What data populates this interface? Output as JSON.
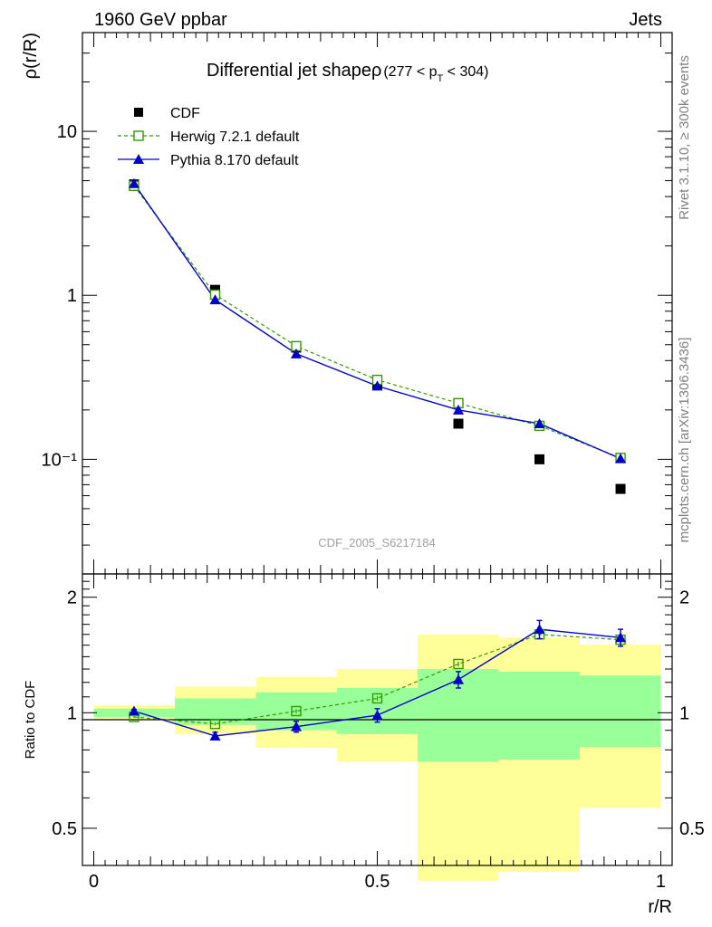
{
  "header": {
    "left": "1960 GeV ppbar",
    "right": "Jets"
  },
  "side_labels": {
    "rivet": "Rivet 3.1.10, ≥ 300k events",
    "mcplots": "mcplots.cern.ch [arXiv:1306.3436]"
  },
  "colors": {
    "cdf": "#000000",
    "herwig": "#339900",
    "pythia": "#0000cc",
    "band_outer": "#ffff99",
    "band_inner": "#99ff99"
  },
  "chart_data": [
    {
      "type": "scatter",
      "title": "Differential jet shapeρ",
      "title_cut": "(277 < p",
      "title_cut_sub": "T",
      "title_cut_end": " < 304)",
      "ylabel": "ρ(r/R)",
      "yscale": "log",
      "ylim": [
        0.02,
        40
      ],
      "xlim": [
        -0.02,
        1.02
      ],
      "y_tick_labels": [
        "10⁻¹",
        "1",
        "10"
      ],
      "watermark": "CDF_2005_S6217184",
      "legend_position": "top-left",
      "x": [
        0.071,
        0.214,
        0.357,
        0.5,
        0.643,
        0.786,
        0.929
      ],
      "series": [
        {
          "name": "CDF",
          "marker": "square-filled",
          "values": [
            4.75,
            1.08,
            0.48,
            0.285,
            0.165,
            0.1,
            0.066
          ]
        },
        {
          "name": "Herwig 7.2.1 default",
          "marker": "square-open",
          "line": "dashed",
          "values": [
            4.65,
            1.01,
            0.49,
            0.305,
            0.22,
            0.16,
            0.102
          ]
        },
        {
          "name": "Pythia 8.170 default",
          "marker": "triangle-filled",
          "line": "solid",
          "values": [
            4.8,
            0.94,
            0.44,
            0.28,
            0.2,
            0.165,
            0.101
          ]
        }
      ]
    },
    {
      "type": "scatter",
      "ylabel": "Ratio to CDF",
      "xlabel": "r/R",
      "yscale": "log",
      "ylim": [
        0.4,
        2.3
      ],
      "xlim": [
        -0.02,
        1.02
      ],
      "x_tick_labels": [
        "0",
        "0.5",
        "1"
      ],
      "y_tick_labels": [
        "0.5",
        "1",
        "2"
      ],
      "x": [
        0.071,
        0.214,
        0.357,
        0.5,
        0.643,
        0.786,
        0.929
      ],
      "bins": [
        [
          0.0,
          0.143
        ],
        [
          0.143,
          0.286
        ],
        [
          0.286,
          0.429
        ],
        [
          0.429,
          0.571
        ],
        [
          0.571,
          0.714
        ],
        [
          0.714,
          0.857
        ],
        [
          0.857,
          1.0
        ]
      ],
      "band_outer": [
        [
          0.96,
          1.045
        ],
        [
          0.88,
          1.17
        ],
        [
          0.81,
          1.24
        ],
        [
          0.745,
          1.3
        ],
        [
          0.365,
          1.6
        ],
        [
          0.385,
          1.57
        ],
        [
          0.565,
          1.505
        ]
      ],
      "band_inner": [
        [
          0.975,
          1.025
        ],
        [
          0.93,
          1.09
        ],
        [
          0.9,
          1.13
        ],
        [
          0.88,
          1.16
        ],
        [
          0.745,
          1.3
        ],
        [
          0.755,
          1.28
        ],
        [
          0.815,
          1.25
        ]
      ],
      "reference": 1,
      "series": [
        {
          "name": "Herwig 7.2.1 default",
          "marker": "square-open",
          "line": "dashed",
          "values": [
            0.975,
            0.935,
            1.01,
            1.09,
            1.34,
            1.6,
            1.55
          ],
          "err": [
            0.005,
            0.008,
            0.012,
            0.015,
            0.02,
            0.03,
            0.03
          ]
        },
        {
          "name": "Pythia 8.170 default",
          "marker": "triangle-filled",
          "line": "solid",
          "values": [
            1.01,
            0.87,
            0.92,
            0.985,
            1.22,
            1.65,
            1.57
          ],
          "err": [
            0.01,
            0.02,
            0.03,
            0.04,
            0.06,
            0.09,
            0.08
          ]
        }
      ]
    }
  ]
}
